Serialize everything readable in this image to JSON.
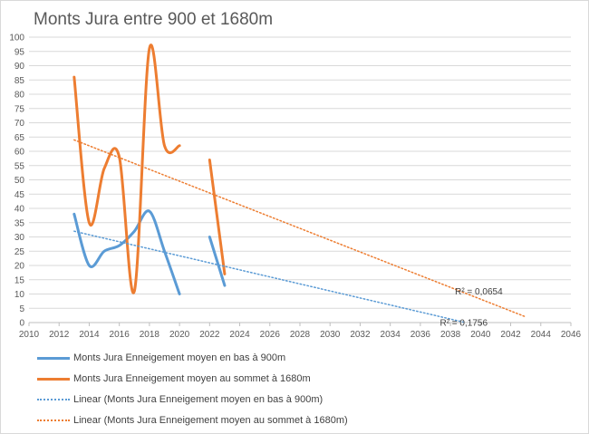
{
  "chart_data": {
    "type": "line",
    "title": "Monts Jura entre 900 et 1680m",
    "xlim": [
      2010,
      2046
    ],
    "ylim": [
      0,
      100
    ],
    "xticks": [
      2010,
      2012,
      2014,
      2016,
      2018,
      2020,
      2022,
      2024,
      2026,
      2028,
      2030,
      2032,
      2034,
      2036,
      2038,
      2040,
      2042,
      2044,
      2046
    ],
    "yticks": [
      0,
      5,
      10,
      15,
      20,
      25,
      30,
      35,
      40,
      45,
      50,
      55,
      60,
      65,
      70,
      75,
      80,
      85,
      90,
      95,
      100
    ],
    "grid": true,
    "legend_position": "bottom",
    "series": [
      {
        "name": "Monts Jura Enneigement moyen en bas à 900m",
        "color": "#5b9bd5",
        "style": "solid-smooth",
        "segments": [
          {
            "x": [
              2013,
              2014,
              2015,
              2016,
              2017,
              2018,
              2019,
              2020
            ],
            "y": [
              38,
              20,
              25,
              27,
              32,
              39,
              25,
              10
            ]
          },
          {
            "x": [
              2022,
              2023
            ],
            "y": [
              30,
              13
            ]
          }
        ]
      },
      {
        "name": "Monts Jura Enneigement moyen au sommet à 1680m",
        "color": "#ed7d31",
        "style": "solid-smooth",
        "segments": [
          {
            "x": [
              2013,
              2014,
              2015,
              2016,
              2017,
              2018,
              2019,
              2020
            ],
            "y": [
              86,
              35,
              54,
              58,
              11,
              96,
              62,
              62
            ]
          },
          {
            "x": [
              2022,
              2023
            ],
            "y": [
              57,
              17
            ]
          }
        ]
      },
      {
        "name": "Linear (Monts Jura Enneigement moyen en bas à 900m)",
        "color": "#5b9bd5",
        "style": "dotted",
        "segments": [
          {
            "x": [
              2013,
              2039
            ],
            "y": [
              32,
              0
            ]
          }
        ],
        "r2_label": "R² = 0,1756",
        "r2_at": [
          2037.3,
          0
        ]
      },
      {
        "name": "Linear (Monts Jura Enneigement moyen au sommet à 1680m)",
        "color": "#ed7d31",
        "style": "dotted",
        "segments": [
          {
            "x": [
              2013,
              2043
            ],
            "y": [
              64,
              2
            ]
          }
        ],
        "r2_label": "R² = 0,0654",
        "r2_at": [
          2038.3,
          11
        ]
      }
    ]
  }
}
